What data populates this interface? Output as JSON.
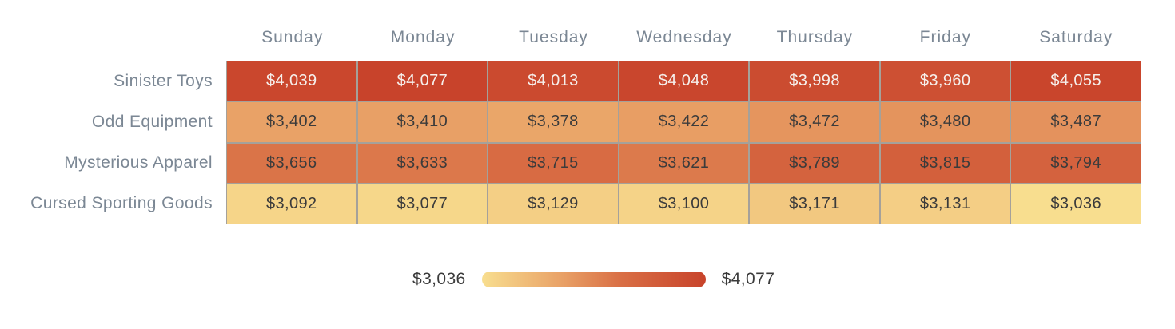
{
  "chart_data": {
    "type": "heatmap",
    "columns": [
      "Sunday",
      "Monday",
      "Tuesday",
      "Wednesday",
      "Thursday",
      "Friday",
      "Saturday"
    ],
    "rows": [
      "Sinister Toys",
      "Odd Equipment",
      "Mysterious Apparel",
      "Cursed Sporting Goods"
    ],
    "series": [
      {
        "name": "Sinister Toys",
        "values": [
          4039,
          4077,
          4013,
          4048,
          3998,
          3960,
          4055
        ]
      },
      {
        "name": "Odd Equipment",
        "values": [
          3402,
          3410,
          3378,
          3422,
          3472,
          3480,
          3487
        ]
      },
      {
        "name": "Mysterious Apparel",
        "values": [
          3656,
          3633,
          3715,
          3621,
          3789,
          3815,
          3794
        ]
      },
      {
        "name": "Cursed Sporting Goods",
        "values": [
          3092,
          3077,
          3129,
          3100,
          3171,
          3131,
          3036
        ]
      }
    ],
    "value_prefix": "$",
    "min": 3036,
    "max": 4077,
    "legend": {
      "min_label": "$3,036",
      "max_label": "$4,077",
      "position": "bottom-center"
    },
    "colors": {
      "gradient_stops": [
        {
          "t": 0.0,
          "color": "#F8DE8F"
        },
        {
          "t": 0.35,
          "color": "#E9A267"
        },
        {
          "t": 0.62,
          "color": "#D96F45"
        },
        {
          "t": 1.0,
          "color": "#C8432B"
        }
      ],
      "cell_border": "#A5A19A",
      "axis_label": "#7B8794",
      "cell_text_dark": "#3B3B3B",
      "cell_text_light": "#F6F0EC",
      "background": "#FFFFFF"
    },
    "layout": {
      "grid": true,
      "light_text_threshold": 0.8
    }
  }
}
